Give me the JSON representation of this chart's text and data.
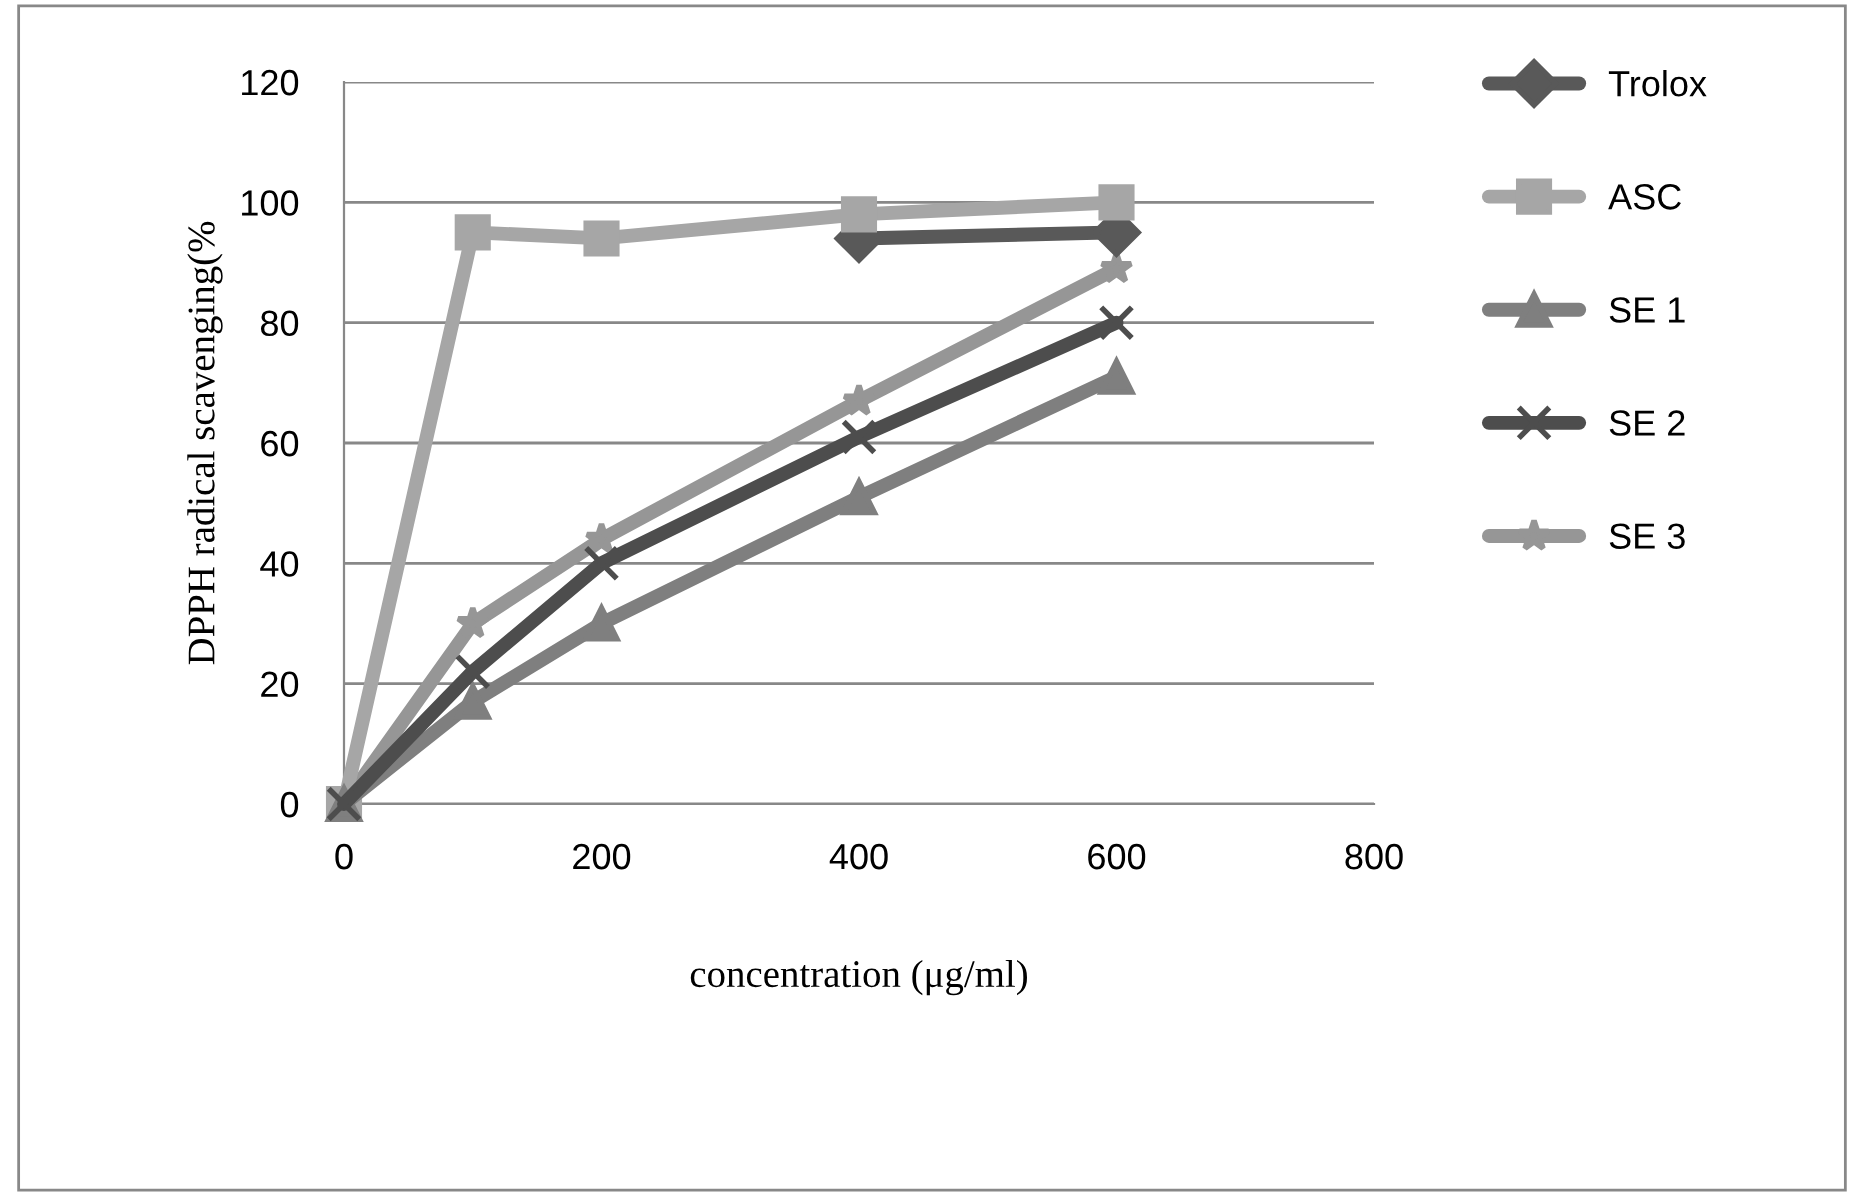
{
  "chart_data": {
    "type": "line",
    "xlabel": "concentration (μg/ml)",
    "ylabel": "DPPH radical scavenging(%",
    "x": [
      0,
      100,
      200,
      400,
      600
    ],
    "series": [
      {
        "name": "Trolox",
        "color": "#595959",
        "marker": "diamond",
        "values": [
          null,
          null,
          null,
          94,
          95
        ]
      },
      {
        "name": "ASC",
        "color": "#a6a6a6",
        "marker": "square",
        "values": [
          0,
          95,
          94,
          98,
          100
        ]
      },
      {
        "name": "SE 1",
        "color": "#7f7f7f",
        "marker": "triangle",
        "values": [
          0,
          17,
          30,
          51,
          71
        ]
      },
      {
        "name": "SE 2",
        "color": "#4d4d4d",
        "marker": "cross",
        "values": [
          0,
          22,
          40,
          61,
          80
        ]
      },
      {
        "name": "SE 3",
        "color": "#969696",
        "marker": "star",
        "values": [
          0,
          30,
          44,
          67,
          89
        ]
      }
    ],
    "xlim": [
      0,
      800
    ],
    "xticks": [
      0,
      200,
      400,
      600,
      800
    ],
    "ylim": [
      0,
      120
    ],
    "yticks": [
      0,
      20,
      40,
      60,
      80,
      100,
      120
    ],
    "grid": "y",
    "legend": "right"
  }
}
